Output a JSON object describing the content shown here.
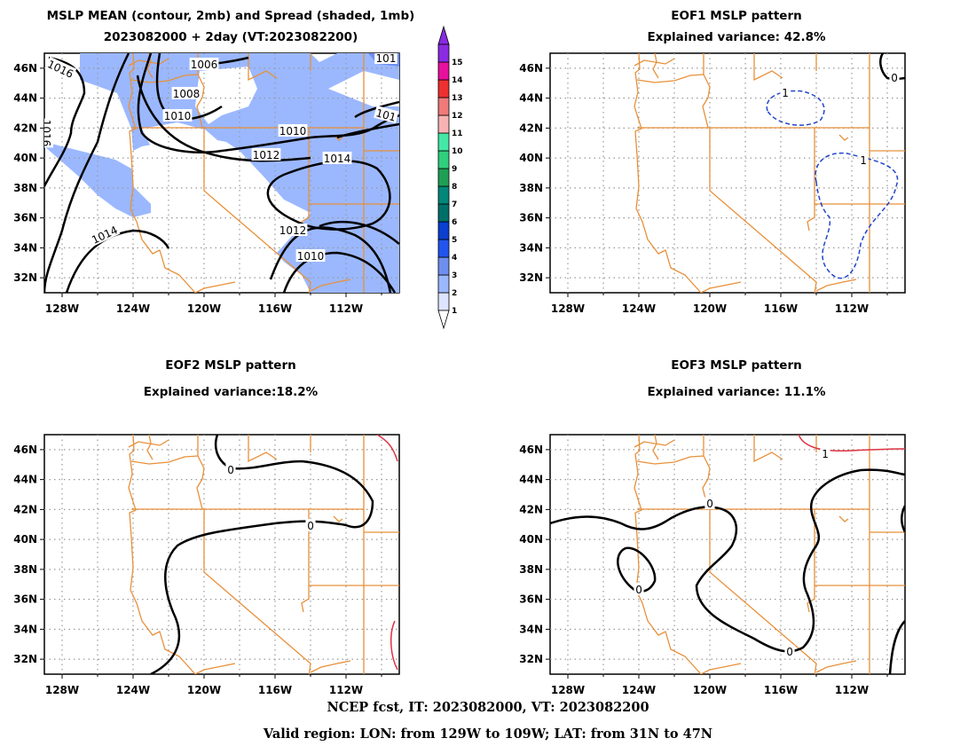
{
  "panels": [
    {
      "title1": "MSLP MEAN (contour, 2mb) and Spread (shaded, 1mb)",
      "title2": "2023082000 + 2day (VT:2023082200)"
    },
    {
      "title1": "EOF1 MSLP pattern",
      "title2": "Explained variance: 42.8%"
    },
    {
      "title1": "EOF2 MSLP pattern",
      "title2": "Explained variance:18.2%"
    },
    {
      "title1": "EOF3 MSLP pattern",
      "title2": "Explained variance: 11.1%"
    }
  ],
  "axes": {
    "lon_ticks": [
      "128W",
      "124W",
      "120W",
      "116W",
      "112W"
    ],
    "lat_ticks": [
      "46N",
      "44N",
      "42N",
      "40N",
      "38N",
      "36N",
      "34N",
      "32N"
    ]
  },
  "colorbar": {
    "labels": [
      "1",
      "2",
      "3",
      "4",
      "5",
      "6",
      "7",
      "8",
      "9",
      "10",
      "11",
      "12",
      "13",
      "14",
      "15"
    ],
    "colors": [
      "#dde4ff",
      "#9bb8ff",
      "#6f8ff0",
      "#2255ee",
      "#0a3fd0",
      "#006f6a",
      "#00877a",
      "#1f9f55",
      "#2fcf7c",
      "#44e8a6",
      "#f7b3b3",
      "#f07a7a",
      "#ee3030",
      "#e8109d",
      "#8a2be2"
    ]
  },
  "mean_labels": [
    "1016",
    "1006",
    "1008",
    "1010",
    "1010",
    "1012",
    "1014",
    "1014",
    "1012",
    "1010",
    "1016",
    "101",
    "101"
  ],
  "eof1_labels": [
    "1",
    "1",
    "0"
  ],
  "eof2_labels": [
    "0",
    "0"
  ],
  "eof3_labels": [
    "0",
    "0",
    "0",
    "1"
  ],
  "footer": {
    "line1": "NCEP fcst, IT: 2023082000, VT: 2023082200",
    "line2": "Valid region: LON: from 129W to 109W; LAT: from 31N to 47N"
  },
  "colors": {
    "coast": "#e8903a",
    "spread_fill": "#9bb8ff",
    "contour": "#000000",
    "negative": "#2244cc",
    "positive": "#dd3344"
  }
}
